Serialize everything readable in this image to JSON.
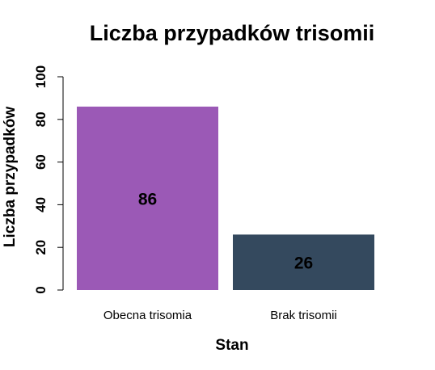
{
  "chart_data": {
    "type": "bar",
    "title": "Liczba przypadków trisomii",
    "xlabel": "Stan",
    "ylabel": "Liczba przypadków",
    "categories": [
      "Obecna trisomia",
      "Brak trisomii"
    ],
    "values": [
      86,
      26
    ],
    "data_labels": [
      "86",
      "26"
    ],
    "colors": [
      "#9B59B6",
      "#34495E"
    ],
    "ylim": [
      0,
      100
    ],
    "yticks": [
      0,
      20,
      40,
      60,
      80,
      100
    ],
    "ytick_labels": [
      "0",
      "20",
      "40",
      "60",
      "80",
      "100"
    ],
    "grid": false,
    "legend": "none"
  }
}
